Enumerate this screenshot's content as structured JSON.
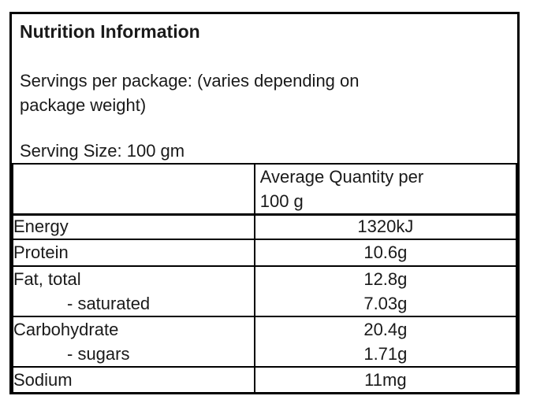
{
  "label": {
    "title": "Nutrition Information",
    "servings_per_package": "Servings per package: (varies depending on package weight)",
    "serving_size": "Serving Size: 100 gm",
    "table": {
      "header_col1": "",
      "header_col2": "Average Quantity per 100 g",
      "rows": [
        {
          "name": "Energy",
          "value": "1320kJ"
        },
        {
          "name": "Protein",
          "value": "10.6g"
        },
        {
          "name": "Fat, total",
          "value": "12.8g",
          "sub_name": "- saturated",
          "sub_value": "7.03g"
        },
        {
          "name": "Carbohydrate",
          "value": "20.4g",
          "sub_name": "- sugars",
          "sub_value": "1.71g"
        },
        {
          "name": "Sodium",
          "value": "11mg"
        }
      ]
    },
    "colors": {
      "border": "#000000",
      "text": "#1a1a1a",
      "background": "#ffffff"
    }
  }
}
